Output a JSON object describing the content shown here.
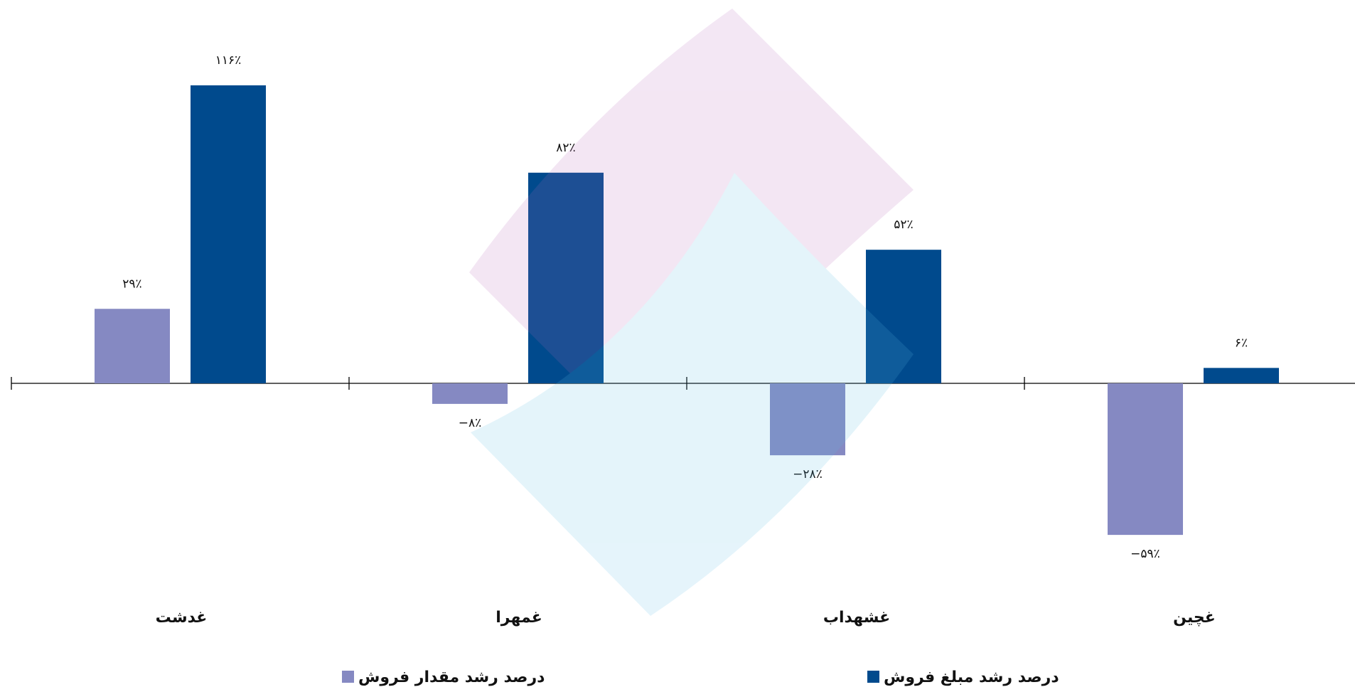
{
  "chart_data": {
    "type": "bar",
    "categories": [
      "غدشت",
      "غمهرا",
      "غشهداب",
      "غچین"
    ],
    "series": [
      {
        "name": "درصد رشد مقدار فروش",
        "color": "#8589c2",
        "values": [
          29,
          -8,
          -28,
          -59
        ],
        "value_labels": [
          "۲۹٪",
          "−۸٪",
          "−۲۸٪",
          "−۵۹٪"
        ]
      },
      {
        "name": "درصد رشد مبلغ فروش",
        "color": "#004a8d",
        "values": [
          116,
          82,
          52,
          6
        ],
        "value_labels": [
          "۱۱۶٪",
          "۸۲٪",
          "۵۲٪",
          "۶٪"
        ]
      }
    ]
  }
}
